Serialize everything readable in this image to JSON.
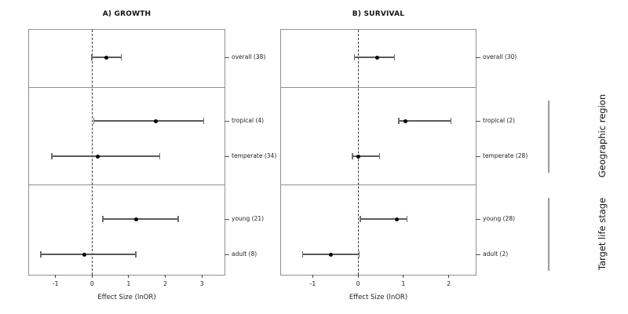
{
  "figure": {
    "kind": "two-panel forest plot (meta-analysis)",
    "right_labels": [
      {
        "text": "Geographic region"
      },
      {
        "text": "Target life stage"
      }
    ]
  },
  "colors": {
    "background": "#ffffff",
    "box_border": "#919191",
    "reference_line": "#3a3a3a",
    "interval": "#5a5a5a",
    "point": "#000000",
    "text": "#1a1a1a"
  },
  "chart_data": [
    {
      "type": "forest",
      "panel": "A",
      "title": "A) GROWTH",
      "xlabel": "Effect Size (lnOR)",
      "xlim": [
        -1.72,
        3.66
      ],
      "ticks": [
        -1,
        0,
        1,
        2,
        3
      ],
      "reference_line": 0,
      "grid": false,
      "sections": [
        "overall",
        "Geographic region",
        "Target life stage"
      ],
      "rows": [
        {
          "label": "overall (38)",
          "section": "overall",
          "n": 38,
          "estimate": 0.4,
          "ci_low": 0.0,
          "ci_high": 0.8
        },
        {
          "label": "tropical (4)",
          "section": "Geographic region",
          "n": 4,
          "estimate": 1.75,
          "ci_low": 0.05,
          "ci_high": 3.05
        },
        {
          "label": "temperate (34)",
          "section": "Geographic region",
          "n": 34,
          "estimate": 0.15,
          "ci_low": -1.1,
          "ci_high": 1.85
        },
        {
          "label": "young (21)",
          "section": "Target life stage",
          "n": 21,
          "estimate": 1.2,
          "ci_low": 0.3,
          "ci_high": 2.35
        },
        {
          "label": "adult (8)",
          "section": "Target life stage",
          "n": 8,
          "estimate": -0.2,
          "ci_low": -1.4,
          "ci_high": 1.2
        }
      ]
    },
    {
      "type": "forest",
      "panel": "B",
      "title": "B) SURVIVAL",
      "xlabel": "Effect Size (lnOR)",
      "xlim": [
        -1.7,
        2.63
      ],
      "ticks": [
        -1,
        0,
        1,
        2
      ],
      "reference_line": 0,
      "grid": false,
      "sections": [
        "overall",
        "Geographic region",
        "Target life stage"
      ],
      "rows": [
        {
          "label": "overall (30)",
          "section": "overall",
          "n": 30,
          "estimate": 0.43,
          "ci_low": -0.08,
          "ci_high": 0.8
        },
        {
          "label": "tropical (2)",
          "section": "Geographic region",
          "n": 2,
          "estimate": 1.05,
          "ci_low": 0.9,
          "ci_high": 2.05
        },
        {
          "label": "temperate (28)",
          "section": "Geographic region",
          "n": 28,
          "estimate": 0.0,
          "ci_low": -0.12,
          "ci_high": 0.47
        },
        {
          "label": "young (28)",
          "section": "Target life stage",
          "n": 28,
          "estimate": 0.85,
          "ci_low": 0.05,
          "ci_high": 1.08
        },
        {
          "label": "adult (2)",
          "section": "Target life stage",
          "n": 2,
          "estimate": -0.6,
          "ci_low": -1.22,
          "ci_high": 0.02
        }
      ]
    }
  ]
}
